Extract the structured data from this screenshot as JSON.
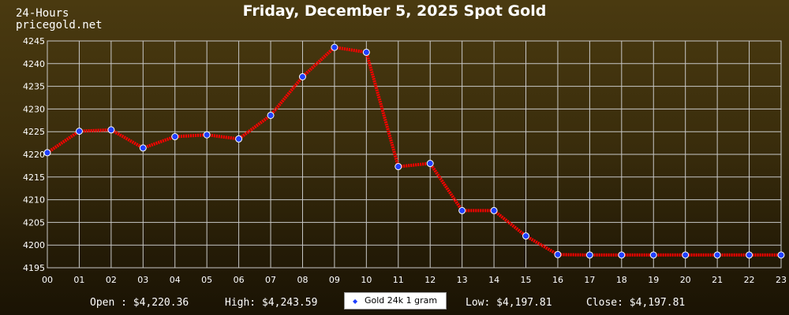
{
  "header": {
    "top_label": "24-Hours",
    "site": "pricegold.net"
  },
  "stats": {
    "open": "Open : $4,220.36",
    "high": "High: $4,243.59",
    "low": "Low: $4,197.81",
    "close": "Close: $4,197.81"
  },
  "colors": {
    "line": "#ff0000",
    "marker_fill": "#1f3fff",
    "marker_stroke": "#ffffff",
    "grid": "#c8c8c8",
    "text": "#ffffff"
  },
  "chart_data": {
    "type": "line",
    "title": "Friday, December 5, 2025 Spot Gold",
    "xlabel": "",
    "ylabel": "",
    "x": [
      "00",
      "01",
      "02",
      "03",
      "04",
      "05",
      "06",
      "07",
      "08",
      "09",
      "10",
      "11",
      "12",
      "13",
      "14",
      "15",
      "16",
      "17",
      "18",
      "19",
      "20",
      "21",
      "22",
      "23"
    ],
    "ylim": [
      4195,
      4245
    ],
    "yticks": [
      4195,
      4200,
      4205,
      4210,
      4215,
      4220,
      4225,
      4230,
      4235,
      4240,
      4245
    ],
    "grid": true,
    "legend_position": "bottom-center",
    "series": [
      {
        "name": "Gold 24k 1 gram",
        "values": [
          4220.36,
          4225.1,
          4225.4,
          4221.4,
          4223.9,
          4224.3,
          4223.4,
          4228.6,
          4237.1,
          4243.59,
          4242.5,
          4217.3,
          4218.0,
          4207.6,
          4207.6,
          4202.0,
          4197.9,
          4197.81,
          4197.81,
          4197.81,
          4197.81,
          4197.81,
          4197.81,
          4197.81
        ]
      }
    ]
  }
}
